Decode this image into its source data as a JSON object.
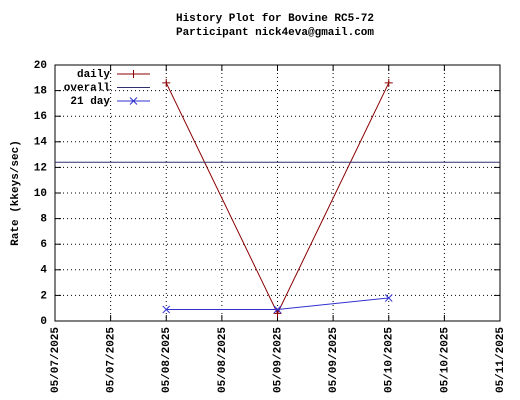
{
  "chart_data": {
    "type": "line",
    "title": "History Plot for Bovine RC5-72",
    "subtitle": "Participant nick4eva@gmail.com",
    "y_label": "Rate (kkeys/sec)",
    "xlim": [
      0,
      4
    ],
    "xticks": [
      {
        "value": 0,
        "label": "05/07/2025"
      },
      {
        "value": 0.5,
        "label": "05/07/2025"
      },
      {
        "value": 1,
        "label": "05/08/2025"
      },
      {
        "value": 1.5,
        "label": "05/08/2025"
      },
      {
        "value": 2,
        "label": "05/09/2025"
      },
      {
        "value": 2.5,
        "label": "05/09/2025"
      },
      {
        "value": 3,
        "label": "05/10/2025"
      },
      {
        "value": 3.5,
        "label": "05/10/2025"
      },
      {
        "value": 4,
        "label": "05/11/2025"
      }
    ],
    "ylim": [
      0,
      20
    ],
    "yticks": [
      0,
      2,
      4,
      6,
      8,
      10,
      12,
      14,
      16,
      18,
      20
    ],
    "grid": true,
    "legend": "top-left",
    "series": [
      {
        "name": "daily",
        "color": "#8b0000",
        "marker": "plus",
        "x": [
          1,
          2,
          3
        ],
        "values": [
          18.6,
          0.6,
          18.6
        ]
      },
      {
        "name": "overall",
        "color": "#30306a",
        "marker": "none",
        "x": [
          0,
          4
        ],
        "values": [
          12.4,
          12.4
        ]
      },
      {
        "name": "21 day",
        "color": "#3030d0",
        "marker": "cross",
        "x": [
          1,
          2,
          3
        ],
        "values": [
          0.9,
          0.9,
          1.8
        ]
      }
    ]
  }
}
